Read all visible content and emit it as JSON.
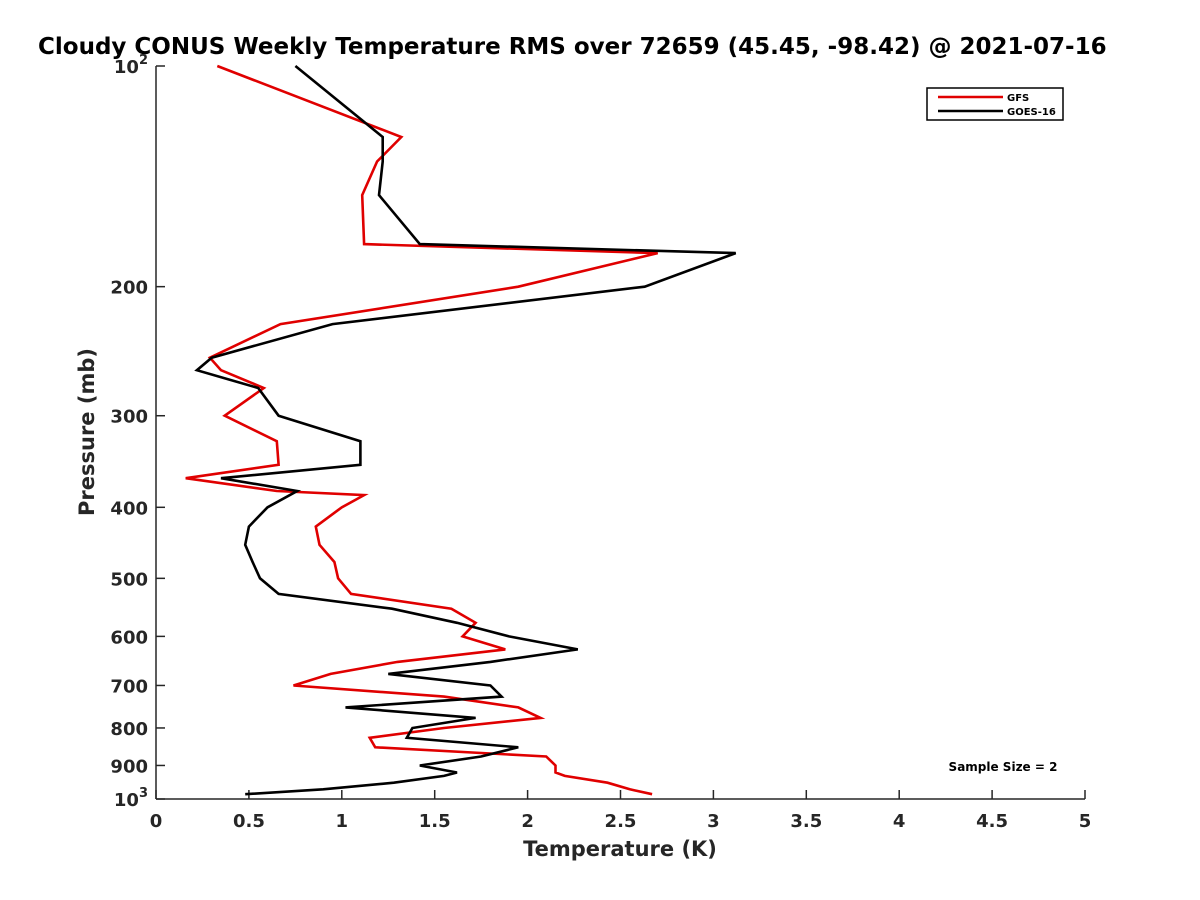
{
  "chart_data": {
    "type": "line",
    "title": "Cloudy CONUS Weekly Temperature RMS over 72659 (45.45, -98.42) @ 2021-07-16",
    "xlabel": "Temperature (K)",
    "ylabel": "Pressure (mb)",
    "xlim": [
      0,
      5
    ],
    "ylim": [
      100,
      1000
    ],
    "yscale": "log",
    "y_reversed": true,
    "grid": false,
    "legend_position": "top-right",
    "x_ticks": [
      {
        "value": 0,
        "label": "0"
      },
      {
        "value": 0.5,
        "label": "0.5"
      },
      {
        "value": 1,
        "label": "1"
      },
      {
        "value": 1.5,
        "label": "1.5"
      },
      {
        "value": 2,
        "label": "2"
      },
      {
        "value": 2.5,
        "label": "2.5"
      },
      {
        "value": 3,
        "label": "3"
      },
      {
        "value": 3.5,
        "label": "3.5"
      },
      {
        "value": 4,
        "label": "4"
      },
      {
        "value": 4.5,
        "label": "4.5"
      },
      {
        "value": 5,
        "label": "5"
      }
    ],
    "y_ticks": [
      {
        "value": 100,
        "label": "10",
        "sup": "2"
      },
      {
        "value": 200,
        "label": "200",
        "sup": ""
      },
      {
        "value": 300,
        "label": "300",
        "sup": ""
      },
      {
        "value": 400,
        "label": "400",
        "sup": ""
      },
      {
        "value": 500,
        "label": "500",
        "sup": ""
      },
      {
        "value": 600,
        "label": "600",
        "sup": ""
      },
      {
        "value": 700,
        "label": "700",
        "sup": ""
      },
      {
        "value": 800,
        "label": "800",
        "sup": ""
      },
      {
        "value": 900,
        "label": "900",
        "sup": ""
      },
      {
        "value": 1000,
        "label": "10",
        "sup": "3"
      }
    ],
    "series": [
      {
        "name": "GFS",
        "color": "#e00000",
        "points": [
          [
            0.33,
            100
          ],
          [
            1.32,
            125
          ],
          [
            1.19,
            135
          ],
          [
            1.11,
            150
          ],
          [
            1.12,
            175
          ],
          [
            2.7,
            180
          ],
          [
            1.95,
            200
          ],
          [
            0.67,
            225
          ],
          [
            0.29,
            250
          ],
          [
            0.35,
            260
          ],
          [
            0.58,
            275
          ],
          [
            0.37,
            300
          ],
          [
            0.65,
            325
          ],
          [
            0.66,
            350
          ],
          [
            0.16,
            365
          ],
          [
            0.65,
            380
          ],
          [
            1.12,
            385
          ],
          [
            1.0,
            400
          ],
          [
            0.86,
            425
          ],
          [
            0.88,
            450
          ],
          [
            0.96,
            475
          ],
          [
            0.98,
            500
          ],
          [
            1.05,
            525
          ],
          [
            1.59,
            550
          ],
          [
            1.72,
            575
          ],
          [
            1.65,
            600
          ],
          [
            1.88,
            625
          ],
          [
            1.3,
            650
          ],
          [
            0.94,
            675
          ],
          [
            0.74,
            700
          ],
          [
            1.55,
            725
          ],
          [
            1.95,
            750
          ],
          [
            2.07,
            775
          ],
          [
            1.55,
            800
          ],
          [
            1.15,
            825
          ],
          [
            1.18,
            850
          ],
          [
            2.1,
            875
          ],
          [
            2.15,
            900
          ],
          [
            2.15,
            920
          ],
          [
            2.2,
            930
          ],
          [
            2.43,
            950
          ],
          [
            2.55,
            970
          ],
          [
            2.67,
            985
          ]
        ]
      },
      {
        "name": "GOES-16",
        "color": "#000000",
        "points": [
          [
            0.75,
            100
          ],
          [
            1.22,
            125
          ],
          [
            1.22,
            135
          ],
          [
            1.2,
            150
          ],
          [
            1.42,
            175
          ],
          [
            3.12,
            180
          ],
          [
            2.63,
            200
          ],
          [
            0.95,
            225
          ],
          [
            0.3,
            250
          ],
          [
            0.22,
            260
          ],
          [
            0.55,
            275
          ],
          [
            0.66,
            300
          ],
          [
            1.1,
            325
          ],
          [
            1.1,
            350
          ],
          [
            0.35,
            365
          ],
          [
            0.76,
            380
          ],
          [
            0.6,
            400
          ],
          [
            0.5,
            425
          ],
          [
            0.48,
            450
          ],
          [
            0.52,
            475
          ],
          [
            0.56,
            500
          ],
          [
            0.66,
            525
          ],
          [
            1.27,
            550
          ],
          [
            1.62,
            575
          ],
          [
            1.9,
            600
          ],
          [
            2.27,
            625
          ],
          [
            1.8,
            650
          ],
          [
            1.25,
            675
          ],
          [
            1.8,
            700
          ],
          [
            1.86,
            725
          ],
          [
            1.02,
            750
          ],
          [
            1.72,
            775
          ],
          [
            1.38,
            800
          ],
          [
            1.35,
            825
          ],
          [
            1.95,
            850
          ],
          [
            1.75,
            875
          ],
          [
            1.42,
            900
          ],
          [
            1.62,
            920
          ],
          [
            1.55,
            930
          ],
          [
            1.28,
            950
          ],
          [
            0.9,
            970
          ],
          [
            0.48,
            985
          ]
        ]
      }
    ],
    "annotation": "Sample Size = 2"
  }
}
